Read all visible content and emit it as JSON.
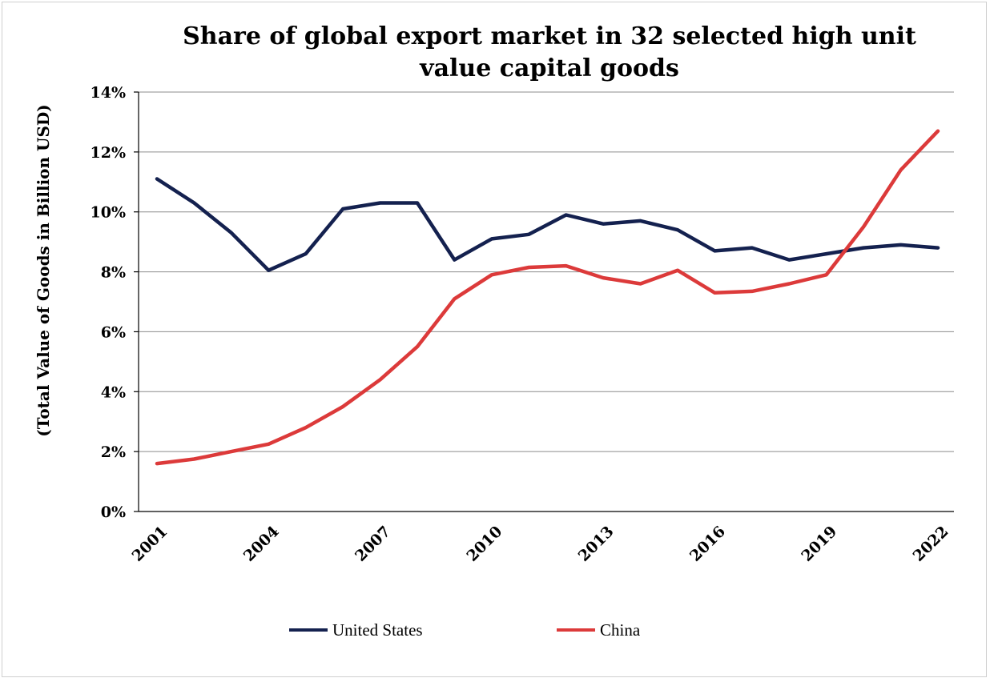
{
  "chart_data": {
    "type": "line",
    "title_lines": [
      "Share of global export market in 32 selected high unit",
      "value capital goods"
    ],
    "ylabel": "(Total Value of Goods in Billion USD)",
    "xlabel": "",
    "x": [
      2001,
      2002,
      2003,
      2004,
      2005,
      2006,
      2007,
      2008,
      2009,
      2010,
      2011,
      2012,
      2013,
      2014,
      2015,
      2016,
      2017,
      2018,
      2019,
      2020,
      2021,
      2022
    ],
    "x_tick_labels": [
      "2001",
      "2004",
      "2007",
      "2010",
      "2013",
      "2016",
      "2019",
      "2022"
    ],
    "y_tick_labels": [
      "0%",
      "2%",
      "4%",
      "6%",
      "8%",
      "10%",
      "12%",
      "14%"
    ],
    "ylim": [
      0,
      14
    ],
    "grid": "horizontal",
    "legend_position": "bottom",
    "series": [
      {
        "name": "United States",
        "color": "#14214f",
        "values": [
          11.1,
          10.3,
          9.3,
          8.05,
          8.6,
          10.1,
          10.3,
          10.3,
          8.4,
          9.1,
          9.25,
          9.9,
          9.6,
          9.7,
          9.4,
          8.7,
          8.8,
          8.4,
          8.6,
          8.8,
          8.9,
          8.8
        ]
      },
      {
        "name": "China",
        "color": "#dc3a3a",
        "values": [
          1.6,
          1.75,
          2.0,
          2.25,
          2.8,
          3.5,
          4.4,
          5.5,
          7.1,
          7.9,
          8.15,
          8.2,
          7.8,
          7.6,
          8.05,
          7.3,
          7.35,
          7.6,
          7.9,
          9.5,
          11.4,
          12.7
        ]
      }
    ]
  }
}
